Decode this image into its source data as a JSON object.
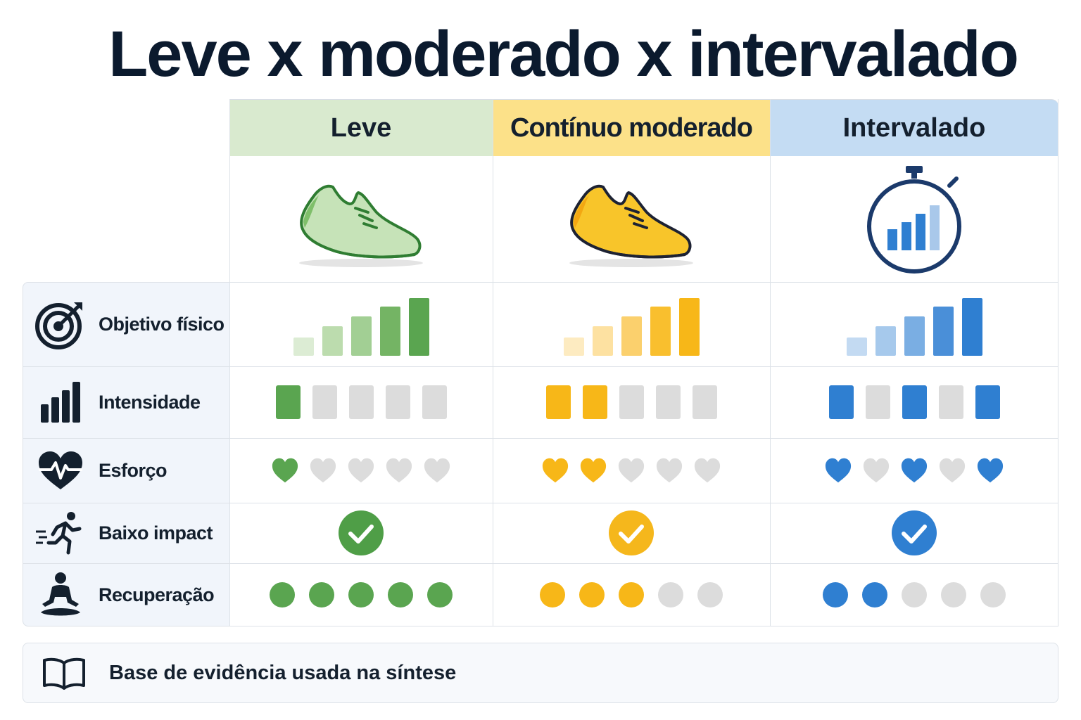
{
  "title": "Leve x moderado x intervalado",
  "columns": [
    {
      "key": "leve",
      "label": "Leve",
      "color": "#5aa550",
      "header_bg": "#d9eacf",
      "icon": "sneaker-icon"
    },
    {
      "key": "moderado",
      "label": "Contínuo moderado",
      "color": "#f7b718",
      "header_bg": "#fce189",
      "icon": "sneaker-icon"
    },
    {
      "key": "intervalado",
      "label": "Intervalado",
      "color": "#2f7fd1",
      "header_bg": "#c4dcf3",
      "icon": "stopwatch-icon"
    }
  ],
  "rows": [
    {
      "label": "Objetivo físico",
      "icon": "target-icon"
    },
    {
      "label": "Intensidade",
      "icon": "bar-chart-icon"
    },
    {
      "label": "Esforço",
      "icon": "heart-rate-icon"
    },
    {
      "label": "Baixo impact",
      "icon": "runner-icon"
    },
    {
      "label": "Recuperação",
      "icon": "meditation-icon"
    }
  ],
  "ratings": {
    "objetivo_bars": 5,
    "intensidade": {
      "leve": [
        1,
        0,
        0,
        0,
        0
      ],
      "moderado": [
        1,
        1,
        0,
        0,
        0
      ],
      "intervalado": [
        1,
        0,
        1,
        0,
        1
      ]
    },
    "esforco": {
      "leve": [
        1,
        0,
        0,
        0,
        0
      ],
      "moderado": [
        1,
        1,
        0,
        0,
        0
      ],
      "intervalado": [
        1,
        0,
        1,
        0,
        1
      ]
    },
    "baixo_impacto": {
      "leve": true,
      "moderado": true,
      "intervalado": true
    },
    "recuperacao": {
      "leve": [
        1,
        1,
        1,
        1,
        1
      ],
      "moderado": [
        1,
        1,
        1,
        0,
        0
      ],
      "intervalado": [
        1,
        1,
        0,
        0,
        0
      ]
    }
  },
  "inactive_color": "#dcdcdc",
  "footer": {
    "label": "Base de evidência usada na síntese",
    "icon": "open-book-icon"
  }
}
